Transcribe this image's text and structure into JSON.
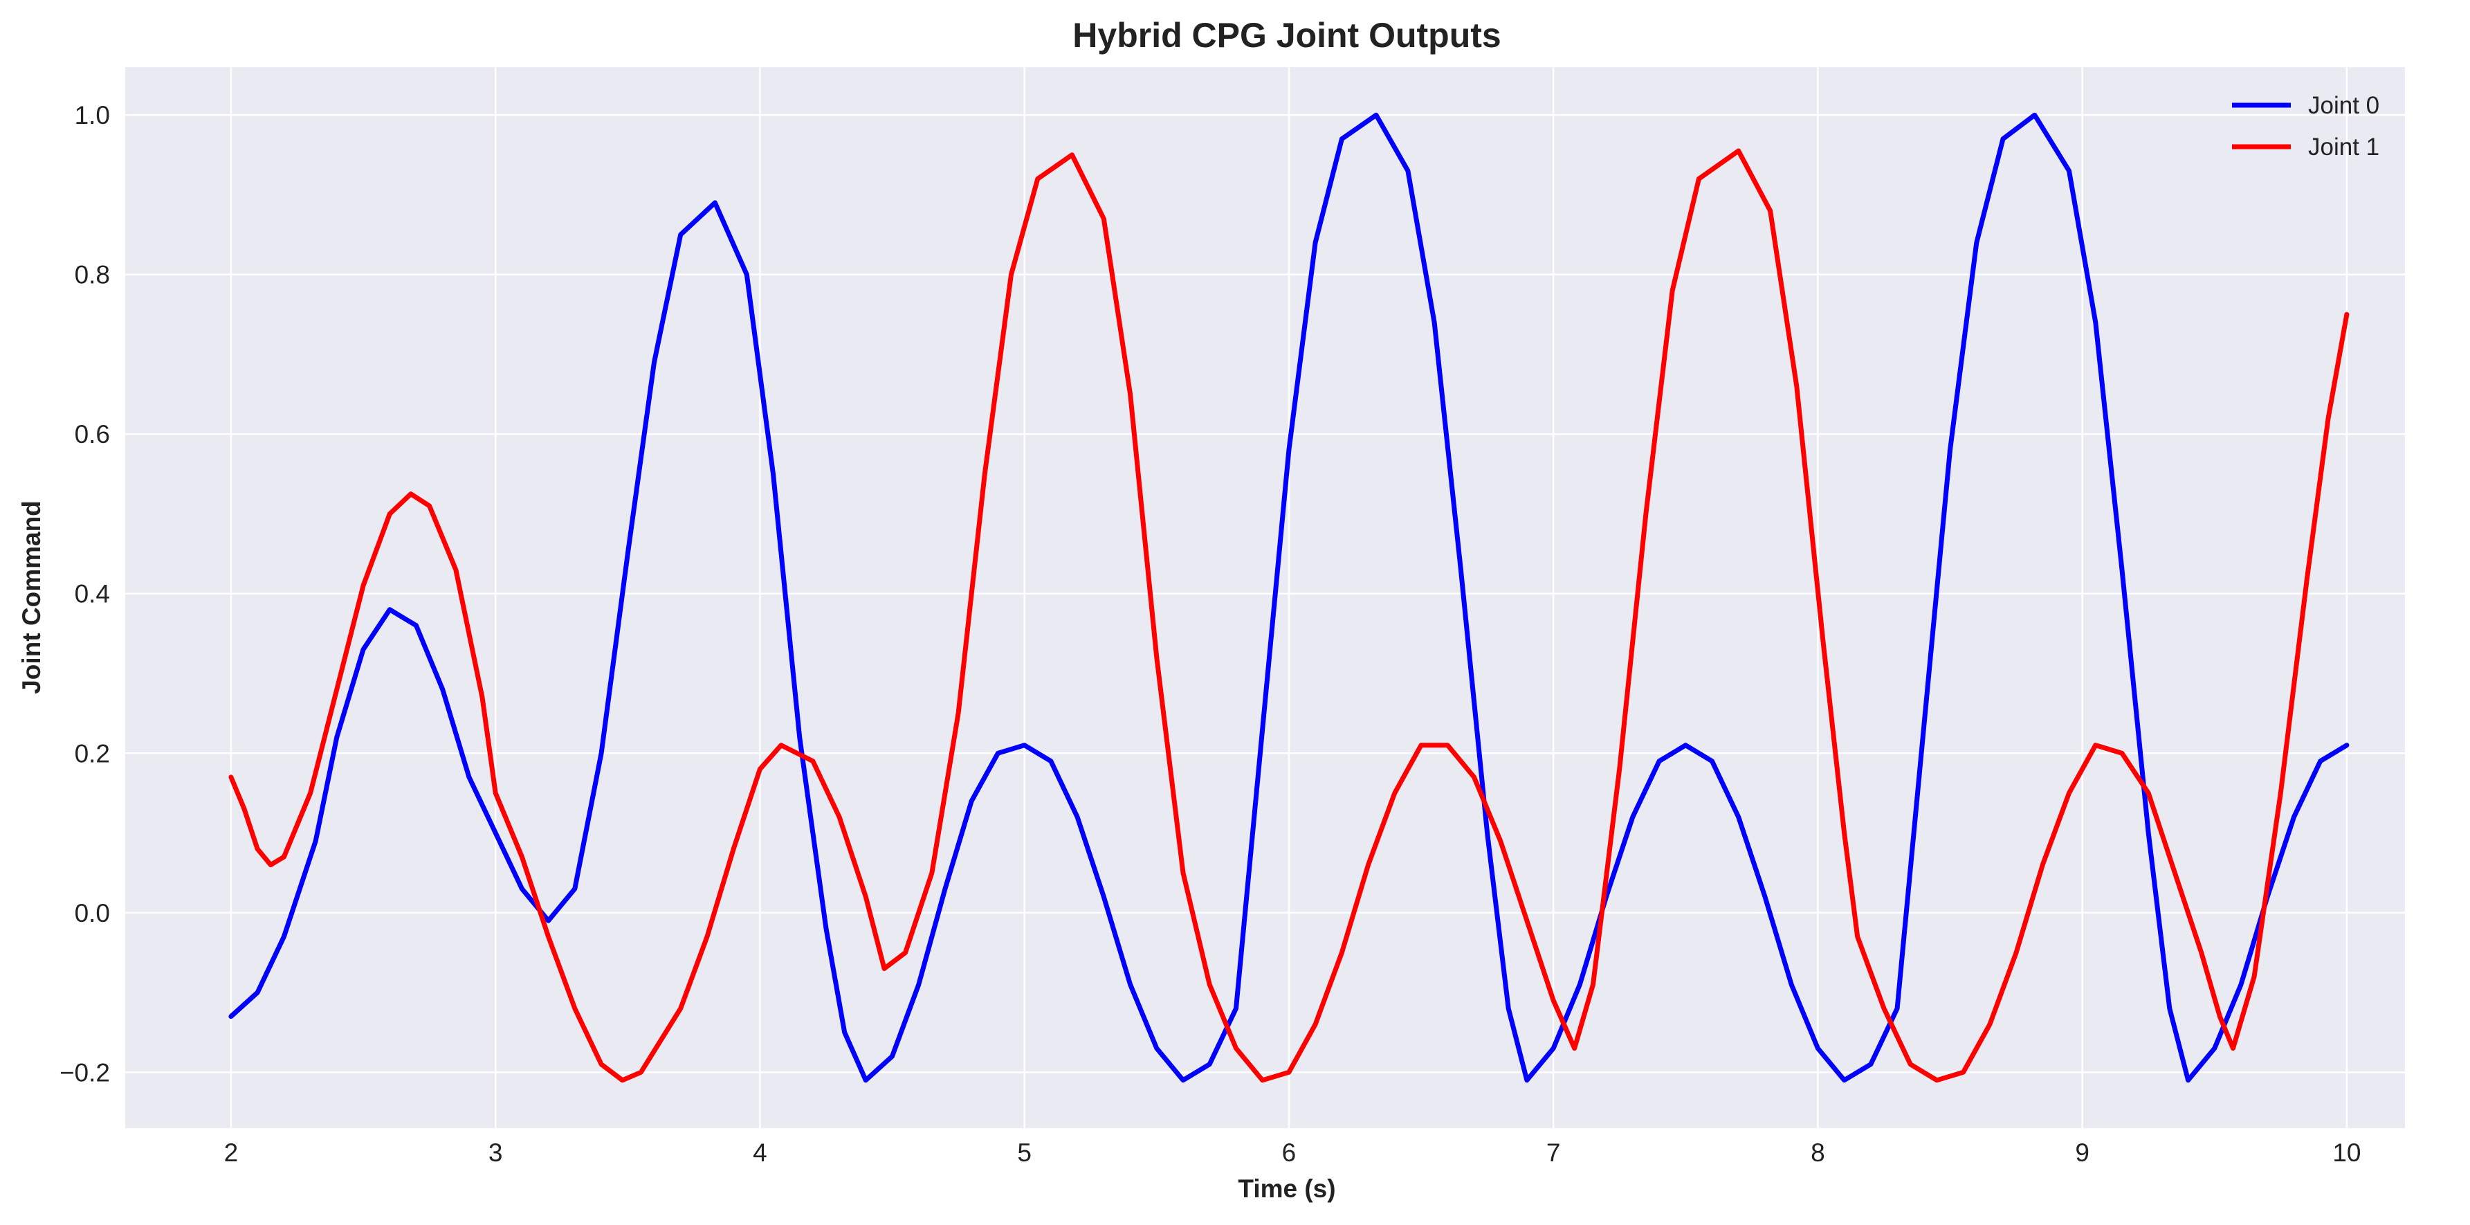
{
  "chart_data": {
    "type": "line",
    "title": "Hybrid CPG Joint Outputs",
    "xlabel": "Time (s)",
    "ylabel": "Joint Command",
    "xlim": [
      1.6,
      10.22
    ],
    "ylim": [
      -0.27,
      1.06
    ],
    "xticks": [
      2,
      3,
      4,
      5,
      6,
      7,
      8,
      9,
      10
    ],
    "yticks": [
      -0.2,
      0.0,
      0.2,
      0.4,
      0.6,
      0.8,
      1.0
    ],
    "ytick_labels": [
      "−0.2",
      "0.0",
      "0.2",
      "0.4",
      "0.6",
      "0.8",
      "1.0"
    ],
    "xtick_labels": [
      "2",
      "3",
      "4",
      "5",
      "6",
      "7",
      "8",
      "9",
      "10"
    ],
    "grid": true,
    "legend_position": "top-right",
    "background": "#eaeaf2",
    "series": [
      {
        "name": "Joint 0",
        "color": "#0000ff",
        "points": [
          [
            2.0,
            -0.13
          ],
          [
            2.1,
            -0.1
          ],
          [
            2.2,
            -0.03
          ],
          [
            2.32,
            0.09
          ],
          [
            2.4,
            0.22
          ],
          [
            2.5,
            0.33
          ],
          [
            2.6,
            0.38
          ],
          [
            2.7,
            0.36
          ],
          [
            2.8,
            0.28
          ],
          [
            2.9,
            0.17
          ],
          [
            3.0,
            0.1
          ],
          [
            3.1,
            0.03
          ],
          [
            3.2,
            -0.01
          ],
          [
            3.3,
            0.03
          ],
          [
            3.4,
            0.2
          ],
          [
            3.5,
            0.45
          ],
          [
            3.6,
            0.69
          ],
          [
            3.7,
            0.85
          ],
          [
            3.83,
            0.89
          ],
          [
            3.95,
            0.8
          ],
          [
            4.05,
            0.55
          ],
          [
            4.15,
            0.22
          ],
          [
            4.25,
            -0.02
          ],
          [
            4.32,
            -0.15
          ],
          [
            4.4,
            -0.21
          ],
          [
            4.5,
            -0.18
          ],
          [
            4.6,
            -0.09
          ],
          [
            4.7,
            0.03
          ],
          [
            4.8,
            0.14
          ],
          [
            4.9,
            0.2
          ],
          [
            5.0,
            0.21
          ],
          [
            5.1,
            0.19
          ],
          [
            5.2,
            0.12
          ],
          [
            5.3,
            0.02
          ],
          [
            5.4,
            -0.09
          ],
          [
            5.5,
            -0.17
          ],
          [
            5.6,
            -0.21
          ],
          [
            5.7,
            -0.19
          ],
          [
            5.8,
            -0.12
          ],
          [
            5.9,
            0.23
          ],
          [
            6.0,
            0.58
          ],
          [
            6.1,
            0.84
          ],
          [
            6.2,
            0.97
          ],
          [
            6.33,
            1.0
          ],
          [
            6.45,
            0.93
          ],
          [
            6.55,
            0.74
          ],
          [
            6.65,
            0.43
          ],
          [
            6.75,
            0.1
          ],
          [
            6.83,
            -0.12
          ],
          [
            6.9,
            -0.21
          ],
          [
            7.0,
            -0.17
          ],
          [
            7.1,
            -0.09
          ],
          [
            7.2,
            0.02
          ],
          [
            7.3,
            0.12
          ],
          [
            7.4,
            0.19
          ],
          [
            7.5,
            0.21
          ],
          [
            7.6,
            0.19
          ],
          [
            7.7,
            0.12
          ],
          [
            7.8,
            0.02
          ],
          [
            7.9,
            -0.09
          ],
          [
            8.0,
            -0.17
          ],
          [
            8.1,
            -0.21
          ],
          [
            8.2,
            -0.19
          ],
          [
            8.3,
            -0.12
          ],
          [
            8.4,
            0.23
          ],
          [
            8.5,
            0.58
          ],
          [
            8.6,
            0.84
          ],
          [
            8.7,
            0.97
          ],
          [
            8.82,
            1.0
          ],
          [
            8.95,
            0.93
          ],
          [
            9.05,
            0.74
          ],
          [
            9.15,
            0.43
          ],
          [
            9.25,
            0.1
          ],
          [
            9.33,
            -0.12
          ],
          [
            9.4,
            -0.21
          ],
          [
            9.5,
            -0.17
          ],
          [
            9.6,
            -0.09
          ],
          [
            9.7,
            0.02
          ],
          [
            9.8,
            0.12
          ],
          [
            9.9,
            0.19
          ],
          [
            10.0,
            0.21
          ]
        ]
      },
      {
        "name": "Joint 1",
        "color": "#ff0000",
        "points": [
          [
            2.0,
            0.17
          ],
          [
            2.05,
            0.13
          ],
          [
            2.1,
            0.08
          ],
          [
            2.15,
            0.06
          ],
          [
            2.2,
            0.07
          ],
          [
            2.3,
            0.15
          ],
          [
            2.4,
            0.28
          ],
          [
            2.5,
            0.41
          ],
          [
            2.6,
            0.5
          ],
          [
            2.68,
            0.525
          ],
          [
            2.75,
            0.51
          ],
          [
            2.85,
            0.43
          ],
          [
            2.95,
            0.27
          ],
          [
            3.0,
            0.15
          ],
          [
            3.1,
            0.07
          ],
          [
            3.2,
            -0.03
          ],
          [
            3.3,
            -0.12
          ],
          [
            3.4,
            -0.19
          ],
          [
            3.48,
            -0.21
          ],
          [
            3.55,
            -0.2
          ],
          [
            3.7,
            -0.12
          ],
          [
            3.8,
            -0.03
          ],
          [
            3.9,
            0.08
          ],
          [
            4.0,
            0.18
          ],
          [
            4.08,
            0.21
          ],
          [
            4.2,
            0.19
          ],
          [
            4.3,
            0.12
          ],
          [
            4.4,
            0.02
          ],
          [
            4.47,
            -0.07
          ],
          [
            4.55,
            -0.05
          ],
          [
            4.65,
            0.05
          ],
          [
            4.75,
            0.25
          ],
          [
            4.85,
            0.55
          ],
          [
            4.95,
            0.8
          ],
          [
            5.05,
            0.92
          ],
          [
            5.18,
            0.95
          ],
          [
            5.3,
            0.87
          ],
          [
            5.4,
            0.65
          ],
          [
            5.5,
            0.32
          ],
          [
            5.6,
            0.05
          ],
          [
            5.65,
            -0.02
          ],
          [
            5.7,
            -0.09
          ],
          [
            5.8,
            -0.17
          ],
          [
            5.9,
            -0.21
          ],
          [
            6.0,
            -0.2
          ],
          [
            6.1,
            -0.14
          ],
          [
            6.2,
            -0.05
          ],
          [
            6.3,
            0.06
          ],
          [
            6.4,
            0.15
          ],
          [
            6.5,
            0.21
          ],
          [
            6.6,
            0.21
          ],
          [
            6.7,
            0.17
          ],
          [
            6.8,
            0.09
          ],
          [
            6.9,
            -0.01
          ],
          [
            7.0,
            -0.11
          ],
          [
            7.08,
            -0.17
          ],
          [
            7.15,
            -0.09
          ],
          [
            7.25,
            0.18
          ],
          [
            7.35,
            0.5
          ],
          [
            7.45,
            0.78
          ],
          [
            7.55,
            0.92
          ],
          [
            7.7,
            0.955
          ],
          [
            7.82,
            0.88
          ],
          [
            7.92,
            0.66
          ],
          [
            8.02,
            0.34
          ],
          [
            8.1,
            0.1
          ],
          [
            8.15,
            -0.03
          ],
          [
            8.25,
            -0.12
          ],
          [
            8.35,
            -0.19
          ],
          [
            8.45,
            -0.21
          ],
          [
            8.55,
            -0.2
          ],
          [
            8.65,
            -0.14
          ],
          [
            8.75,
            -0.05
          ],
          [
            8.85,
            0.06
          ],
          [
            8.95,
            0.15
          ],
          [
            9.05,
            0.21
          ],
          [
            9.15,
            0.2
          ],
          [
            9.25,
            0.15
          ],
          [
            9.35,
            0.05
          ],
          [
            9.45,
            -0.05
          ],
          [
            9.52,
            -0.13
          ],
          [
            9.57,
            -0.17
          ],
          [
            9.65,
            -0.08
          ],
          [
            9.75,
            0.15
          ],
          [
            9.85,
            0.42
          ],
          [
            9.93,
            0.62
          ],
          [
            10.0,
            0.75
          ]
        ]
      }
    ]
  }
}
